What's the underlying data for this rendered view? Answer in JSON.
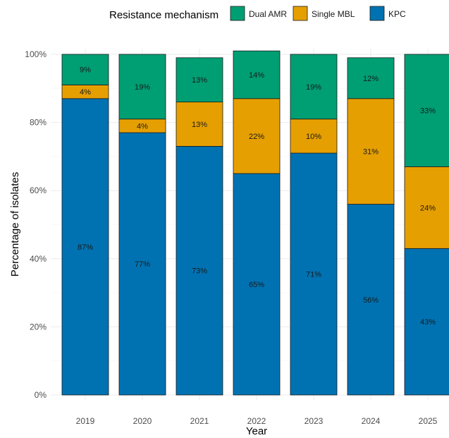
{
  "chart_data": {
    "type": "bar",
    "stacked": true,
    "percent": true,
    "title": "",
    "xlabel": "Year",
    "ylabel": "Percentage of isolates",
    "ylim": [
      0,
      100
    ],
    "yticks": [
      "0%",
      "20%",
      "40%",
      "60%",
      "80%",
      "100%"
    ],
    "categories": [
      "2019",
      "2020",
      "2021",
      "2022",
      "2023",
      "2024",
      "2025"
    ],
    "legend": {
      "title": "Resistance mechanism",
      "position": "top"
    },
    "series": [
      {
        "name": "KPC",
        "color": "#0072B2",
        "values": [
          87,
          77,
          73,
          65,
          71,
          56,
          43
        ],
        "labels": [
          "87%",
          "77%",
          "73%",
          "65%",
          "71%",
          "56%",
          "43%"
        ]
      },
      {
        "name": "Single MBL",
        "color": "#E69F00",
        "values": [
          4,
          4,
          13,
          22,
          10,
          31,
          24
        ],
        "labels": [
          "4%",
          "4%",
          "13%",
          "22%",
          "10%",
          "31%",
          "24%"
        ]
      },
      {
        "name": "Dual AMR",
        "color": "#009E73",
        "values": [
          9,
          19,
          13,
          14,
          19,
          12,
          33
        ],
        "labels": [
          "9%",
          "19%",
          "13%",
          "14%",
          "19%",
          "12%",
          "33%"
        ]
      }
    ],
    "grid": true
  }
}
